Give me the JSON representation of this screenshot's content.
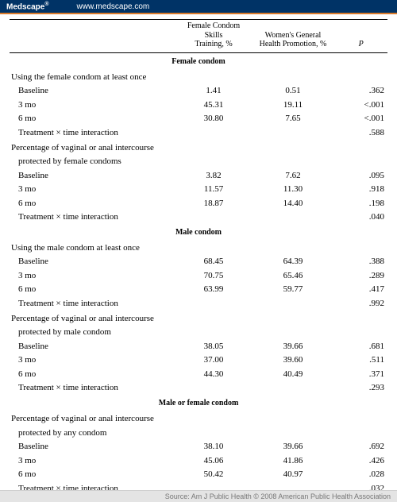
{
  "header": {
    "brand": "Medscape",
    "url": "www.medscape.com"
  },
  "columns": {
    "c1_line1": "Female Condom Skills",
    "c1_line2": "Training, %",
    "c2_line1": "Women's General",
    "c2_line2": "Health Promotion, %",
    "p": "P"
  },
  "sections": [
    {
      "title": "Female condom",
      "groups": [
        {
          "label": "Using the female condom at least once",
          "rows": [
            {
              "label": "Baseline",
              "v1": "1.41",
              "v2": "0.51",
              "p": ".362"
            },
            {
              "label": "3 mo",
              "v1": "45.31",
              "v2": "19.11",
              "p": "<.001"
            },
            {
              "label": "6 mo",
              "v1": "30.80",
              "v2": "7.65",
              "p": "<.001"
            },
            {
              "label": "Treatment × time interaction",
              "v1": "",
              "v2": "",
              "p": ".588"
            }
          ]
        },
        {
          "label": "Percentage of vaginal or anal intercourse",
          "label2": "protected by female condoms",
          "rows": [
            {
              "label": "Baseline",
              "v1": "3.82",
              "v2": "7.62",
              "p": ".095"
            },
            {
              "label": "3 mo",
              "v1": "11.57",
              "v2": "11.30",
              "p": ".918"
            },
            {
              "label": "6 mo",
              "v1": "18.87",
              "v2": "14.40",
              "p": ".198"
            },
            {
              "label": "Treatment × time interaction",
              "v1": "",
              "v2": "",
              "p": ".040"
            }
          ]
        }
      ]
    },
    {
      "title": "Male condom",
      "groups": [
        {
          "label": "Using the male condom at least once",
          "rows": [
            {
              "label": "Baseline",
              "v1": "68.45",
              "v2": "64.39",
              "p": ".388"
            },
            {
              "label": "3 mo",
              "v1": "70.75",
              "v2": "65.46",
              "p": ".289"
            },
            {
              "label": "6 mo",
              "v1": "63.99",
              "v2": "59.77",
              "p": ".417"
            },
            {
              "label": "Treatment × time interaction",
              "v1": "",
              "v2": "",
              "p": ".992"
            }
          ]
        },
        {
          "label": "Percentage of vaginal or anal intercourse",
          "label2": "protected by male condom",
          "rows": [
            {
              "label": "Baseline",
              "v1": "38.05",
              "v2": "39.66",
              "p": ".681"
            },
            {
              "label": "3 mo",
              "v1": "37.00",
              "v2": "39.60",
              "p": ".511"
            },
            {
              "label": "6 mo",
              "v1": "44.30",
              "v2": "40.49",
              "p": ".371"
            },
            {
              "label": "Treatment × time interaction",
              "v1": "",
              "v2": "",
              "p": ".293"
            }
          ]
        }
      ]
    },
    {
      "title": "Male or female condom",
      "groups": [
        {
          "label": "Percentage of vaginal or anal intercourse",
          "label2": "protected by any condom",
          "rows": [
            {
              "label": "Baseline",
              "v1": "38.10",
              "v2": "39.66",
              "p": ".692"
            },
            {
              "label": "3 mo",
              "v1": "45.06",
              "v2": "41.86",
              "p": ".426"
            },
            {
              "label": "6 mo",
              "v1": "50.42",
              "v2": "40.97",
              "p": ".028"
            },
            {
              "label": "Treatment × time interaction",
              "v1": "",
              "v2": "",
              "p": ".032"
            }
          ]
        }
      ]
    }
  ],
  "footer": "Source: Am J Public Health © 2008 American Public Health Association"
}
